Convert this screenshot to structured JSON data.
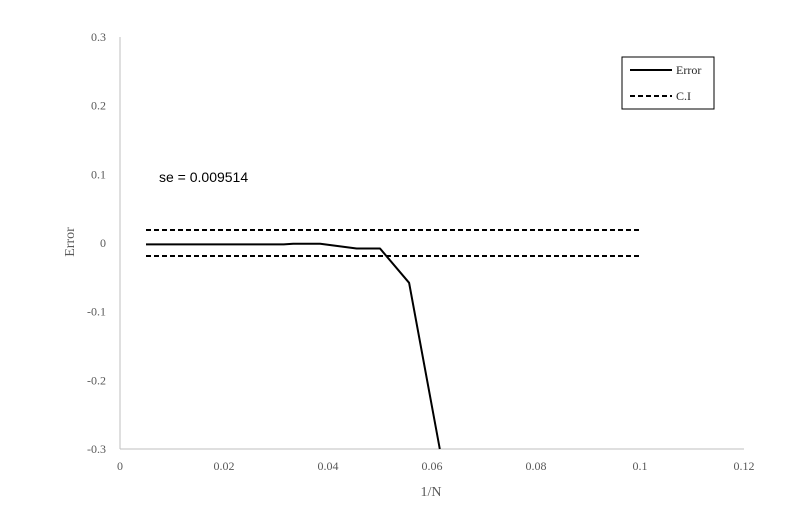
{
  "chart_data": {
    "type": "line",
    "xlabel": "1/N",
    "ylabel": "Error",
    "xlim": [
      0,
      0.12
    ],
    "ylim": [
      -0.3,
      0.3
    ],
    "x_ticks": [
      "0",
      "0.02",
      "0.04",
      "0.06",
      "0.08",
      "0.1",
      "0.12"
    ],
    "y_ticks": [
      "0.3",
      "0.2",
      "0.1",
      "0",
      "-0.1",
      "-0.2",
      "-0.3"
    ],
    "grid": false,
    "legend_position": "top-right",
    "annotation": "se =  0.009514",
    "series": [
      {
        "name": "Error",
        "style": "solid",
        "color": "#000000",
        "x": [
          0.005,
          0.01,
          0.02,
          0.03,
          0.0315,
          0.0333,
          0.0385,
          0.0455,
          0.05,
          0.0556,
          0.0615
        ],
        "y": [
          -0.002,
          -0.002,
          -0.002,
          -0.002,
          -0.002,
          -0.001,
          -0.001,
          -0.008,
          -0.008,
          -0.058,
          -0.3
        ]
      },
      {
        "name": "C.I",
        "style": "dashed",
        "color": "#000000",
        "segments": [
          {
            "x": [
              0.005,
              0.1
            ],
            "y": [
              0.019,
              0.019
            ]
          },
          {
            "x": [
              0.005,
              0.1
            ],
            "y": [
              -0.019,
              -0.019
            ]
          }
        ]
      }
    ]
  }
}
